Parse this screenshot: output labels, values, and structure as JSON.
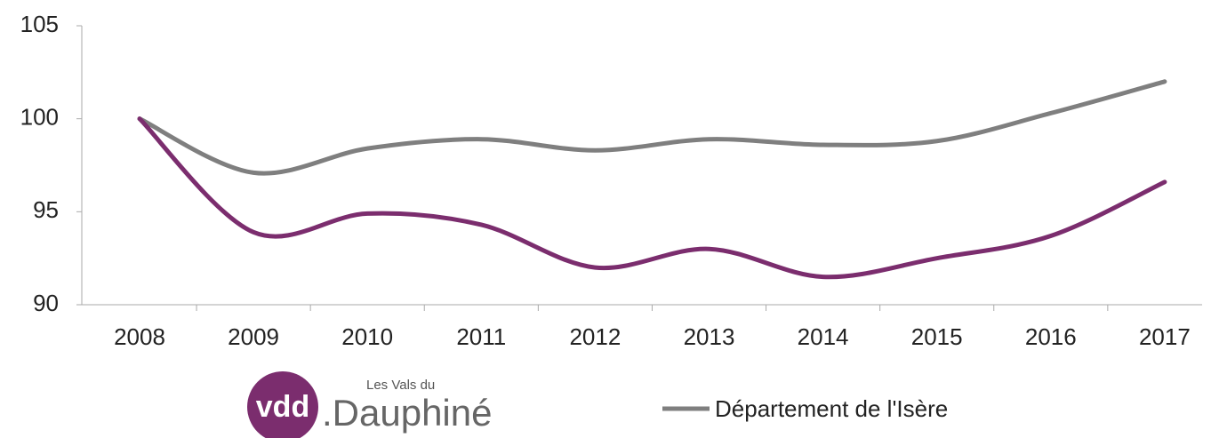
{
  "chart_data": {
    "type": "line",
    "categories": [
      "2008",
      "2009",
      "2010",
      "2011",
      "2012",
      "2013",
      "2014",
      "2015",
      "2016",
      "2017"
    ],
    "series": [
      {
        "name": "Département de l'Isère",
        "color": "#7f7f7f",
        "values": [
          100,
          97.1,
          98.4,
          98.9,
          98.3,
          98.9,
          98.6,
          98.8,
          100.3,
          102.0
        ]
      },
      {
        "color": "#7b2d6e",
        "values": [
          100,
          93.9,
          94.9,
          94.3,
          92.0,
          93.0,
          91.5,
          92.5,
          93.7,
          96.6
        ]
      }
    ],
    "legend_logo": {
      "badge": "vdd",
      "upper": "Les Vals du",
      "lower": ".Dauphiné"
    },
    "ylim": [
      90,
      105
    ],
    "yticks": [
      90,
      95,
      100,
      105
    ],
    "grid": false
  }
}
